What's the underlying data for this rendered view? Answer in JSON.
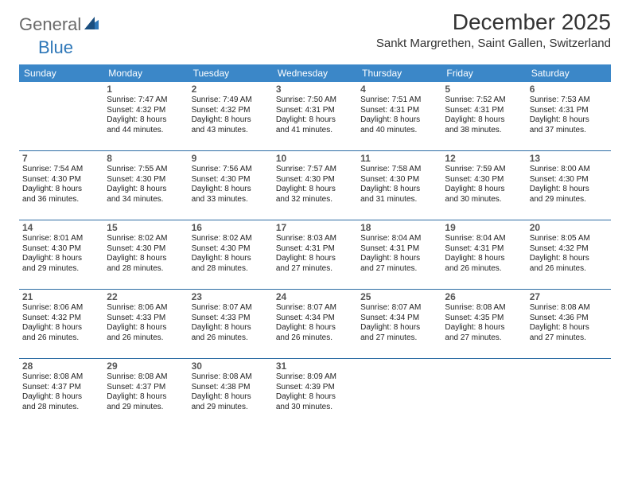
{
  "logo": {
    "word1": "General",
    "word2": "Blue"
  },
  "title": "December 2025",
  "location": "Sankt Margrethen, Saint Gallen, Switzerland",
  "colors": {
    "header_bg": "#3b87c8",
    "header_text": "#ffffff",
    "rule": "#2e6da4",
    "logo_gray": "#6a6a6a",
    "logo_blue": "#2e77b8"
  },
  "weekdays": [
    "Sunday",
    "Monday",
    "Tuesday",
    "Wednesday",
    "Thursday",
    "Friday",
    "Saturday"
  ],
  "weeks": [
    [
      null,
      {
        "n": "1",
        "sr": "Sunrise: 7:47 AM",
        "ss": "Sunset: 4:32 PM",
        "d1": "Daylight: 8 hours",
        "d2": "and 44 minutes."
      },
      {
        "n": "2",
        "sr": "Sunrise: 7:49 AM",
        "ss": "Sunset: 4:32 PM",
        "d1": "Daylight: 8 hours",
        "d2": "and 43 minutes."
      },
      {
        "n": "3",
        "sr": "Sunrise: 7:50 AM",
        "ss": "Sunset: 4:31 PM",
        "d1": "Daylight: 8 hours",
        "d2": "and 41 minutes."
      },
      {
        "n": "4",
        "sr": "Sunrise: 7:51 AM",
        "ss": "Sunset: 4:31 PM",
        "d1": "Daylight: 8 hours",
        "d2": "and 40 minutes."
      },
      {
        "n": "5",
        "sr": "Sunrise: 7:52 AM",
        "ss": "Sunset: 4:31 PM",
        "d1": "Daylight: 8 hours",
        "d2": "and 38 minutes."
      },
      {
        "n": "6",
        "sr": "Sunrise: 7:53 AM",
        "ss": "Sunset: 4:31 PM",
        "d1": "Daylight: 8 hours",
        "d2": "and 37 minutes."
      }
    ],
    [
      {
        "n": "7",
        "sr": "Sunrise: 7:54 AM",
        "ss": "Sunset: 4:30 PM",
        "d1": "Daylight: 8 hours",
        "d2": "and 36 minutes."
      },
      {
        "n": "8",
        "sr": "Sunrise: 7:55 AM",
        "ss": "Sunset: 4:30 PM",
        "d1": "Daylight: 8 hours",
        "d2": "and 34 minutes."
      },
      {
        "n": "9",
        "sr": "Sunrise: 7:56 AM",
        "ss": "Sunset: 4:30 PM",
        "d1": "Daylight: 8 hours",
        "d2": "and 33 minutes."
      },
      {
        "n": "10",
        "sr": "Sunrise: 7:57 AM",
        "ss": "Sunset: 4:30 PM",
        "d1": "Daylight: 8 hours",
        "d2": "and 32 minutes."
      },
      {
        "n": "11",
        "sr": "Sunrise: 7:58 AM",
        "ss": "Sunset: 4:30 PM",
        "d1": "Daylight: 8 hours",
        "d2": "and 31 minutes."
      },
      {
        "n": "12",
        "sr": "Sunrise: 7:59 AM",
        "ss": "Sunset: 4:30 PM",
        "d1": "Daylight: 8 hours",
        "d2": "and 30 minutes."
      },
      {
        "n": "13",
        "sr": "Sunrise: 8:00 AM",
        "ss": "Sunset: 4:30 PM",
        "d1": "Daylight: 8 hours",
        "d2": "and 29 minutes."
      }
    ],
    [
      {
        "n": "14",
        "sr": "Sunrise: 8:01 AM",
        "ss": "Sunset: 4:30 PM",
        "d1": "Daylight: 8 hours",
        "d2": "and 29 minutes."
      },
      {
        "n": "15",
        "sr": "Sunrise: 8:02 AM",
        "ss": "Sunset: 4:30 PM",
        "d1": "Daylight: 8 hours",
        "d2": "and 28 minutes."
      },
      {
        "n": "16",
        "sr": "Sunrise: 8:02 AM",
        "ss": "Sunset: 4:30 PM",
        "d1": "Daylight: 8 hours",
        "d2": "and 28 minutes."
      },
      {
        "n": "17",
        "sr": "Sunrise: 8:03 AM",
        "ss": "Sunset: 4:31 PM",
        "d1": "Daylight: 8 hours",
        "d2": "and 27 minutes."
      },
      {
        "n": "18",
        "sr": "Sunrise: 8:04 AM",
        "ss": "Sunset: 4:31 PM",
        "d1": "Daylight: 8 hours",
        "d2": "and 27 minutes."
      },
      {
        "n": "19",
        "sr": "Sunrise: 8:04 AM",
        "ss": "Sunset: 4:31 PM",
        "d1": "Daylight: 8 hours",
        "d2": "and 26 minutes."
      },
      {
        "n": "20",
        "sr": "Sunrise: 8:05 AM",
        "ss": "Sunset: 4:32 PM",
        "d1": "Daylight: 8 hours",
        "d2": "and 26 minutes."
      }
    ],
    [
      {
        "n": "21",
        "sr": "Sunrise: 8:06 AM",
        "ss": "Sunset: 4:32 PM",
        "d1": "Daylight: 8 hours",
        "d2": "and 26 minutes."
      },
      {
        "n": "22",
        "sr": "Sunrise: 8:06 AM",
        "ss": "Sunset: 4:33 PM",
        "d1": "Daylight: 8 hours",
        "d2": "and 26 minutes."
      },
      {
        "n": "23",
        "sr": "Sunrise: 8:07 AM",
        "ss": "Sunset: 4:33 PM",
        "d1": "Daylight: 8 hours",
        "d2": "and 26 minutes."
      },
      {
        "n": "24",
        "sr": "Sunrise: 8:07 AM",
        "ss": "Sunset: 4:34 PM",
        "d1": "Daylight: 8 hours",
        "d2": "and 26 minutes."
      },
      {
        "n": "25",
        "sr": "Sunrise: 8:07 AM",
        "ss": "Sunset: 4:34 PM",
        "d1": "Daylight: 8 hours",
        "d2": "and 27 minutes."
      },
      {
        "n": "26",
        "sr": "Sunrise: 8:08 AM",
        "ss": "Sunset: 4:35 PM",
        "d1": "Daylight: 8 hours",
        "d2": "and 27 minutes."
      },
      {
        "n": "27",
        "sr": "Sunrise: 8:08 AM",
        "ss": "Sunset: 4:36 PM",
        "d1": "Daylight: 8 hours",
        "d2": "and 27 minutes."
      }
    ],
    [
      {
        "n": "28",
        "sr": "Sunrise: 8:08 AM",
        "ss": "Sunset: 4:37 PM",
        "d1": "Daylight: 8 hours",
        "d2": "and 28 minutes."
      },
      {
        "n": "29",
        "sr": "Sunrise: 8:08 AM",
        "ss": "Sunset: 4:37 PM",
        "d1": "Daylight: 8 hours",
        "d2": "and 29 minutes."
      },
      {
        "n": "30",
        "sr": "Sunrise: 8:08 AM",
        "ss": "Sunset: 4:38 PM",
        "d1": "Daylight: 8 hours",
        "d2": "and 29 minutes."
      },
      {
        "n": "31",
        "sr": "Sunrise: 8:09 AM",
        "ss": "Sunset: 4:39 PM",
        "d1": "Daylight: 8 hours",
        "d2": "and 30 minutes."
      },
      null,
      null,
      null
    ]
  ]
}
